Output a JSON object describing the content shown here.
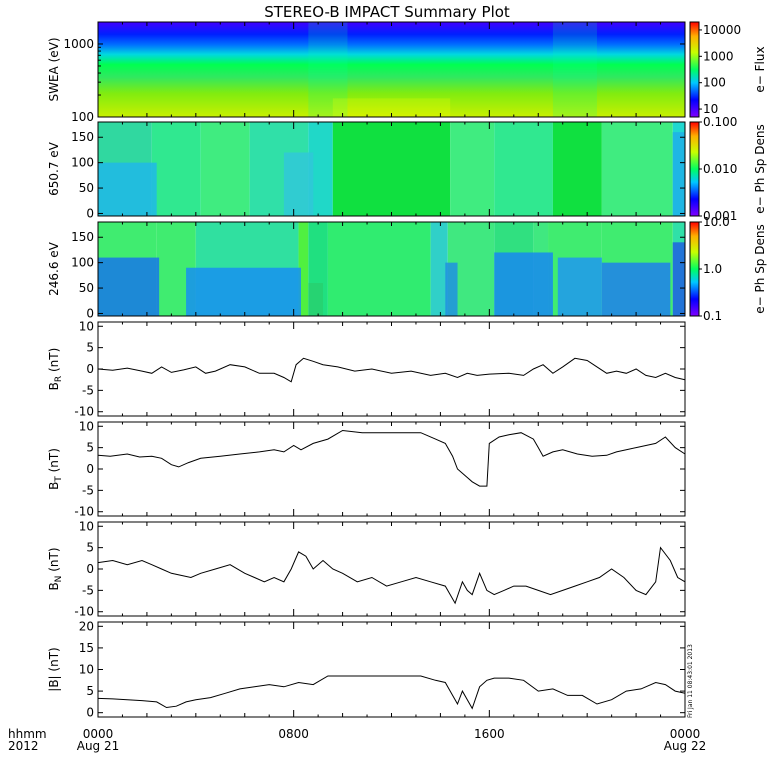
{
  "title": "STEREO-B IMPACT Summary Plot",
  "x_axis": {
    "corner_labels": [
      "hhmm",
      "2012"
    ],
    "ticks": [
      {
        "hhmm": "0000",
        "date": "Aug 21",
        "hour": 0
      },
      {
        "hhmm": "0800",
        "date": "",
        "hour": 8
      },
      {
        "hhmm": "1600",
        "date": "",
        "hour": 16
      },
      {
        "hhmm": "0000",
        "date": "Aug 22",
        "hour": 24
      }
    ],
    "range_hours": [
      0,
      24
    ]
  },
  "timestamp": "Fri Jan 11 08:43:01 2013",
  "colors": {
    "axis": "#000000",
    "line": "#000000",
    "background": "#ffffff"
  },
  "chart_data": [
    {
      "type": "heatmap",
      "ylabel": "SWEA (eV)",
      "yscale": "log",
      "ylim": [
        100,
        2000
      ],
      "yticks": [
        {
          "label": "1000",
          "value": 1000
        },
        {
          "label": "100",
          "value": 100
        }
      ],
      "colorbar": {
        "label": "e− Flux",
        "scale": "log",
        "range": [
          5,
          20000
        ],
        "ticks": [
          {
            "label": "10000",
            "value": 10000
          },
          {
            "label": "1000",
            "value": 1000
          },
          {
            "label": "100",
            "value": 100
          },
          {
            "label": "10",
            "value": 10
          }
        ]
      }
    },
    {
      "type": "heatmap",
      "ylabel": "650.7 eV",
      "yscale": "linear",
      "ylim": [
        -5,
        180
      ],
      "yticks": [
        {
          "label": "150",
          "value": 150
        },
        {
          "label": "100",
          "value": 100
        },
        {
          "label": "50",
          "value": 50
        },
        {
          "label": "0",
          "value": 0
        }
      ],
      "colorbar": {
        "label": "e− Ph Sp Dens",
        "scale": "log",
        "range": [
          0.001,
          0.1
        ],
        "ticks": [
          {
            "label": "0.100",
            "value": 0.1
          },
          {
            "label": "0.010",
            "value": 0.01
          },
          {
            "label": "0.001",
            "value": 0.001
          }
        ]
      }
    },
    {
      "type": "heatmap",
      "ylabel": "246.6 eV",
      "yscale": "linear",
      "ylim": [
        -5,
        180
      ],
      "yticks": [
        {
          "label": "150",
          "value": 150
        },
        {
          "label": "100",
          "value": 100
        },
        {
          "label": "50",
          "value": 50
        },
        {
          "label": "0",
          "value": 0
        }
      ],
      "colorbar": {
        "label": "e− Ph Sp Dens",
        "scale": "log",
        "range": [
          0.1,
          10
        ],
        "ticks": [
          {
            "label": "10.0",
            "value": 10
          },
          {
            "label": "1.0",
            "value": 1
          },
          {
            "label": "0.1",
            "value": 0.1
          }
        ]
      }
    },
    {
      "type": "line",
      "ylabel": "B",
      "ylabel_sub": "R",
      "ylabel_unit": " (nT)",
      "ylim": [
        -11,
        11
      ],
      "yticks": [
        -10,
        -5,
        0,
        5,
        10
      ],
      "x": [
        0,
        0.6,
        1.2,
        1.8,
        2.2,
        2.6,
        3.0,
        3.5,
        4.0,
        4.4,
        4.8,
        5.4,
        6.0,
        6.6,
        7.2,
        7.6,
        7.9,
        8.1,
        8.4,
        8.8,
        9.2,
        9.8,
        10.5,
        11.2,
        12.0,
        12.8,
        13.6,
        14.2,
        14.7,
        15.1,
        15.5,
        16.0,
        16.8,
        17.4,
        17.8,
        18.2,
        18.6,
        19.0,
        19.5,
        20.0,
        20.4,
        20.8,
        21.2,
        21.6,
        22.0,
        22.4,
        22.8,
        23.2,
        23.6,
        24.0
      ],
      "y": [
        0,
        -0.3,
        0.2,
        -0.5,
        -1,
        0.5,
        -0.8,
        -0.2,
        0.5,
        -1,
        -0.5,
        1,
        0.5,
        -1,
        -1,
        -2,
        -3,
        1,
        2.5,
        1.8,
        1,
        0.5,
        -0.5,
        0,
        -1,
        -0.5,
        -1.5,
        -1,
        -2,
        -1,
        -1.5,
        -1.2,
        -1,
        -1.5,
        0,
        1,
        -1,
        0.5,
        2.5,
        2,
        0.5,
        -1,
        -0.5,
        -1,
        0,
        -1.5,
        -2,
        -1,
        -2,
        -2.5
      ]
    },
    {
      "type": "line",
      "ylabel": "B",
      "ylabel_sub": "T",
      "ylabel_unit": " (nT)",
      "ylim": [
        -11,
        11
      ],
      "yticks": [
        -10,
        -5,
        0,
        5,
        10
      ],
      "x": [
        0,
        0.5,
        1.2,
        1.7,
        2.2,
        2.6,
        3.0,
        3.3,
        3.7,
        4.2,
        5.0,
        5.8,
        6.6,
        7.2,
        7.6,
        8.0,
        8.3,
        8.8,
        9.4,
        10.0,
        10.8,
        11.6,
        12.4,
        13.2,
        13.8,
        14.2,
        14.5,
        14.7,
        14.9,
        15.1,
        15.3,
        15.6,
        15.9,
        16.0,
        16.4,
        16.8,
        17.3,
        17.8,
        18.0,
        18.2,
        18.6,
        19.0,
        19.6,
        20.2,
        20.8,
        21.2,
        21.6,
        22.0,
        22.4,
        22.8,
        23.2,
        23.6,
        24.0
      ],
      "y": [
        3.2,
        3,
        3.5,
        2.8,
        3,
        2.5,
        1,
        0.5,
        1.5,
        2.5,
        3,
        3.5,
        4,
        4.5,
        4,
        5.5,
        4.5,
        6,
        7,
        9,
        8.5,
        8.5,
        8.5,
        8.5,
        7,
        6,
        3,
        0,
        -1,
        -2,
        -3,
        -4,
        -4,
        6,
        7.5,
        8,
        8.5,
        7,
        5,
        3,
        4,
        4.5,
        3.5,
        3,
        3.2,
        4,
        4.5,
        5,
        5.5,
        6,
        7.5,
        5,
        3.5
      ]
    },
    {
      "type": "line",
      "ylabel": "B",
      "ylabel_sub": "N",
      "ylabel_unit": " (nT)",
      "ylim": [
        -11,
        11
      ],
      "yticks": [
        -10,
        -5,
        0,
        5,
        10
      ],
      "x": [
        0,
        0.6,
        1.2,
        1.8,
        2.2,
        2.6,
        3.0,
        3.4,
        3.8,
        4.2,
        4.8,
        5.4,
        6.0,
        6.4,
        6.8,
        7.2,
        7.6,
        7.9,
        8.2,
        8.5,
        8.8,
        9.2,
        9.6,
        10.0,
        10.6,
        11.2,
        11.8,
        12.4,
        13.0,
        13.6,
        14.2,
        14.6,
        14.9,
        15.1,
        15.3,
        15.6,
        15.9,
        16.2,
        16.6,
        17.0,
        17.5,
        18.0,
        18.5,
        19.0,
        19.5,
        20.0,
        20.5,
        21.0,
        21.5,
        22.0,
        22.4,
        22.8,
        23.0,
        23.4,
        23.7,
        24.0
      ],
      "y": [
        1.5,
        2,
        1,
        2,
        1,
        0,
        -1,
        -1.5,
        -2,
        -1,
        0,
        1,
        -1,
        -2,
        -3,
        -2,
        -3,
        0,
        4,
        3,
        0,
        2,
        0,
        -1,
        -3,
        -2,
        -4,
        -3,
        -2,
        -3,
        -4,
        -8,
        -3,
        -5,
        -6,
        -1,
        -5,
        -6,
        -5,
        -4,
        -4,
        -5,
        -6,
        -5,
        -4,
        -3,
        -2,
        0,
        -2,
        -5,
        -6,
        -3,
        5,
        2,
        -2,
        -3
      ]
    },
    {
      "type": "line",
      "ylabel": "|B|",
      "ylabel_unit": " (nT)",
      "ylim": [
        -1,
        21
      ],
      "yticks": [
        0,
        5,
        10,
        15,
        20
      ],
      "x": [
        0,
        0.6,
        1.2,
        1.8,
        2.4,
        2.8,
        3.2,
        3.6,
        4.0,
        4.6,
        5.2,
        5.8,
        6.4,
        7.0,
        7.6,
        8.2,
        8.8,
        9.4,
        10.0,
        10.8,
        11.6,
        12.4,
        13.2,
        13.8,
        14.2,
        14.5,
        14.7,
        14.9,
        15.1,
        15.3,
        15.6,
        15.9,
        16.2,
        16.8,
        17.4,
        18.0,
        18.6,
        19.2,
        19.8,
        20.4,
        21.0,
        21.6,
        22.2,
        22.8,
        23.2,
        23.6,
        24.0
      ],
      "y": [
        3.3,
        3.2,
        3,
        2.8,
        2.5,
        1.2,
        1.5,
        2.5,
        3,
        3.5,
        4.5,
        5.5,
        6,
        6.5,
        6,
        7,
        6.5,
        8.5,
        8.5,
        8.5,
        8.5,
        8.5,
        8.5,
        7.5,
        7,
        4,
        2,
        5,
        3,
        1,
        6,
        7.5,
        8,
        8,
        7.5,
        5,
        5.5,
        4,
        4,
        2,
        3,
        5,
        5.5,
        7,
        6.5,
        5,
        4.5
      ]
    }
  ]
}
